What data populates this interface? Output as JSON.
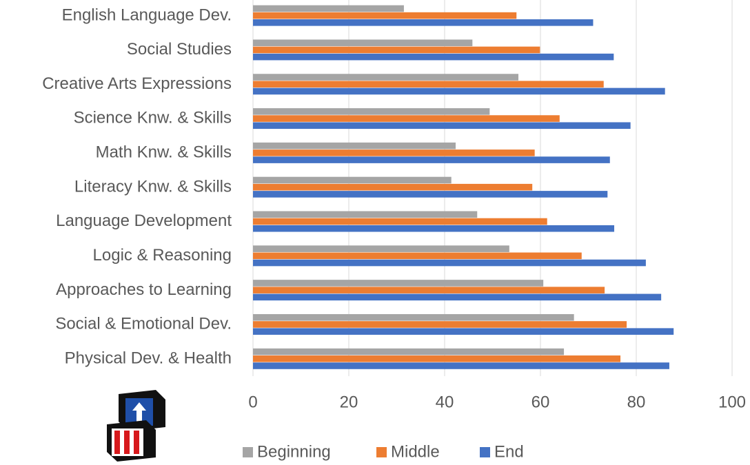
{
  "chart_data": {
    "type": "bar",
    "orientation": "horizontal",
    "categories": [
      "English  Language Dev.",
      "Social Studies",
      "Creative Arts Expressions",
      "Science Knw. & Skills",
      "Math Knw. & Skills",
      "Literacy Knw. & Skills",
      "Language Development",
      "Logic & Reasoning",
      "Approaches to Learning",
      "Social & Emotional Dev.",
      "Physical Dev. & Health"
    ],
    "series": [
      {
        "name": "Beginning",
        "color": "#a5a5a5",
        "values": [
          31.5,
          45.8,
          55.4,
          49.4,
          42.3,
          41.4,
          46.8,
          53.5,
          60.6,
          67,
          64.9
        ]
      },
      {
        "name": "Middle",
        "color": "#ed7d31",
        "values": [
          55,
          59.9,
          73.2,
          64,
          58.8,
          58.3,
          61.4,
          68.6,
          73.4,
          78,
          76.7
        ]
      },
      {
        "name": "End",
        "color": "#4472c4",
        "values": [
          71,
          75.3,
          86,
          78.8,
          74.5,
          74,
          75.4,
          82,
          85.2,
          87.8,
          86.9
        ]
      }
    ],
    "xlim": [
      0,
      100
    ],
    "xticks": [
      0,
      20,
      40,
      60,
      80,
      100
    ],
    "grid": true,
    "legend": "bottom"
  }
}
